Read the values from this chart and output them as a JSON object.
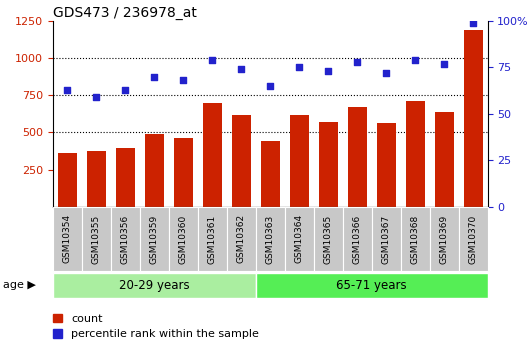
{
  "title": "GDS473 / 236978_at",
  "categories": [
    "GSM10354",
    "GSM10355",
    "GSM10356",
    "GSM10359",
    "GSM10360",
    "GSM10361",
    "GSM10362",
    "GSM10363",
    "GSM10364",
    "GSM10365",
    "GSM10366",
    "GSM10367",
    "GSM10368",
    "GSM10369",
    "GSM10370"
  ],
  "counts": [
    360,
    375,
    395,
    490,
    460,
    695,
    615,
    440,
    620,
    570,
    670,
    565,
    710,
    635,
    1185
  ],
  "percentile_ranks": [
    63,
    59,
    63,
    70,
    68,
    79,
    74,
    65,
    75,
    73,
    78,
    72,
    79,
    77,
    99
  ],
  "group1_label": "20-29 years",
  "group2_label": "65-71 years",
  "group1_count": 7,
  "group2_count": 8,
  "bar_color": "#CC2200",
  "dot_color": "#2222CC",
  "group1_color": "#AAEEA0",
  "group2_color": "#55EE55",
  "left_ylim": [
    0,
    1250
  ],
  "right_ylim": [
    0,
    100
  ],
  "left_yticks": [
    250,
    500,
    750,
    1000,
    1250
  ],
  "right_yticks": [
    0,
    25,
    50,
    75,
    100
  ],
  "right_yticklabels": [
    "0",
    "25",
    "50",
    "75",
    "100%"
  ],
  "grid_values": [
    500,
    750,
    1000
  ],
  "legend_count_label": "count",
  "legend_pct_label": "percentile rank within the sample",
  "age_label": "age",
  "tick_bg_color": "#C8C8C8",
  "plot_bg_color": "#FFFFFF"
}
